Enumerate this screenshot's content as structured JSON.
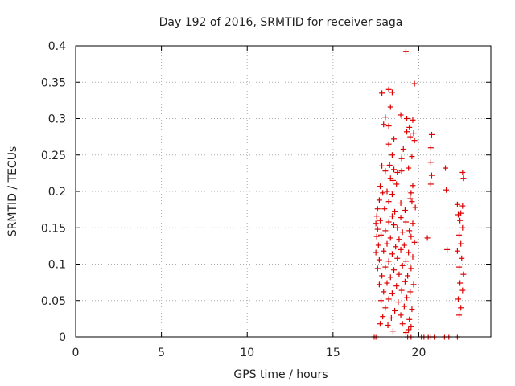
{
  "chart_data": {
    "type": "scatter",
    "title": "Day 192 of 2016, SRMTID for receiver saga",
    "xlabel": "GPS time / hours",
    "ylabel": "SRMTID / TECUs",
    "xlim": [
      0,
      24.2
    ],
    "ylim": [
      0,
      0.4
    ],
    "x_ticks": [
      0,
      5,
      10,
      15,
      20
    ],
    "x_tick_labels": [
      "0",
      "5",
      "10",
      "15",
      "20"
    ],
    "y_ticks": [
      0,
      0.05,
      0.1,
      0.15,
      0.2,
      0.25,
      0.3,
      0.35,
      0.4
    ],
    "y_tick_labels": [
      "0",
      "0.05",
      "0.1",
      "0.15",
      "0.2",
      "0.25",
      "0.3",
      "0.35",
      "0.4"
    ],
    "grid": true,
    "marker": "+",
    "series": [
      {
        "name": "SRMTID",
        "color": "#dd0000",
        "points": [
          [
            19.25,
            0.392
          ],
          [
            19.75,
            0.348
          ],
          [
            17.85,
            0.335
          ],
          [
            18.25,
            0.34
          ],
          [
            18.45,
            0.336
          ],
          [
            18.35,
            0.316
          ],
          [
            18.95,
            0.305
          ],
          [
            19.3,
            0.3
          ],
          [
            19.65,
            0.298
          ],
          [
            18.05,
            0.302
          ],
          [
            19.45,
            0.288
          ],
          [
            19.7,
            0.28
          ],
          [
            17.95,
            0.292
          ],
          [
            18.25,
            0.29
          ],
          [
            19.3,
            0.282
          ],
          [
            19.5,
            0.275
          ],
          [
            19.75,
            0.27
          ],
          [
            20.75,
            0.278
          ],
          [
            18.25,
            0.265
          ],
          [
            18.55,
            0.272
          ],
          [
            19.1,
            0.258
          ],
          [
            20.7,
            0.26
          ],
          [
            19.0,
            0.245
          ],
          [
            19.6,
            0.248
          ],
          [
            18.45,
            0.25
          ],
          [
            18.3,
            0.236
          ],
          [
            18.55,
            0.23
          ],
          [
            18.75,
            0.226
          ],
          [
            19.0,
            0.228
          ],
          [
            19.4,
            0.232
          ],
          [
            20.7,
            0.24
          ],
          [
            21.55,
            0.232
          ],
          [
            17.85,
            0.235
          ],
          [
            18.05,
            0.228
          ],
          [
            18.35,
            0.218
          ],
          [
            18.5,
            0.215
          ],
          [
            22.55,
            0.226
          ],
          [
            22.6,
            0.218
          ],
          [
            20.75,
            0.222
          ],
          [
            20.7,
            0.21
          ],
          [
            17.75,
            0.207
          ],
          [
            18.7,
            0.21
          ],
          [
            19.65,
            0.208
          ],
          [
            17.9,
            0.198
          ],
          [
            18.15,
            0.2
          ],
          [
            18.45,
            0.196
          ],
          [
            19.55,
            0.198
          ],
          [
            21.6,
            0.202
          ],
          [
            17.7,
            0.188
          ],
          [
            18.25,
            0.186
          ],
          [
            18.95,
            0.184
          ],
          [
            19.5,
            0.19
          ],
          [
            19.6,
            0.186
          ],
          [
            22.25,
            0.182
          ],
          [
            22.55,
            0.18
          ],
          [
            17.6,
            0.176
          ],
          [
            18.0,
            0.176
          ],
          [
            18.6,
            0.172
          ],
          [
            19.2,
            0.174
          ],
          [
            19.8,
            0.178
          ],
          [
            17.55,
            0.166
          ],
          [
            18.45,
            0.166
          ],
          [
            18.95,
            0.164
          ],
          [
            22.3,
            0.168
          ],
          [
            22.45,
            0.17
          ],
          [
            17.5,
            0.156
          ],
          [
            17.75,
            0.16
          ],
          [
            18.25,
            0.158
          ],
          [
            18.55,
            0.154
          ],
          [
            19.25,
            0.158
          ],
          [
            19.65,
            0.156
          ],
          [
            22.4,
            0.16
          ],
          [
            17.6,
            0.148
          ],
          [
            18.05,
            0.146
          ],
          [
            18.75,
            0.15
          ],
          [
            19.05,
            0.144
          ],
          [
            19.45,
            0.146
          ],
          [
            22.55,
            0.15
          ],
          [
            17.55,
            0.138
          ],
          [
            17.8,
            0.14
          ],
          [
            18.35,
            0.136
          ],
          [
            18.85,
            0.134
          ],
          [
            19.55,
            0.138
          ],
          [
            20.5,
            0.136
          ],
          [
            22.35,
            0.14
          ],
          [
            17.65,
            0.126
          ],
          [
            18.15,
            0.128
          ],
          [
            18.65,
            0.124
          ],
          [
            19.15,
            0.126
          ],
          [
            19.75,
            0.13
          ],
          [
            22.45,
            0.128
          ],
          [
            17.5,
            0.116
          ],
          [
            17.95,
            0.118
          ],
          [
            18.45,
            0.114
          ],
          [
            18.95,
            0.12
          ],
          [
            19.4,
            0.116
          ],
          [
            21.65,
            0.12
          ],
          [
            22.25,
            0.118
          ],
          [
            17.7,
            0.106
          ],
          [
            18.25,
            0.104
          ],
          [
            18.75,
            0.108
          ],
          [
            19.25,
            0.104
          ],
          [
            19.65,
            0.11
          ],
          [
            22.5,
            0.108
          ],
          [
            17.6,
            0.094
          ],
          [
            18.05,
            0.096
          ],
          [
            18.55,
            0.092
          ],
          [
            19.05,
            0.098
          ],
          [
            19.55,
            0.094
          ],
          [
            22.35,
            0.096
          ],
          [
            17.85,
            0.084
          ],
          [
            18.35,
            0.082
          ],
          [
            18.85,
            0.086
          ],
          [
            19.35,
            0.084
          ],
          [
            22.6,
            0.086
          ],
          [
            17.7,
            0.072
          ],
          [
            18.15,
            0.074
          ],
          [
            18.7,
            0.07
          ],
          [
            19.2,
            0.076
          ],
          [
            19.7,
            0.072
          ],
          [
            22.4,
            0.074
          ],
          [
            17.95,
            0.062
          ],
          [
            18.45,
            0.06
          ],
          [
            19.0,
            0.064
          ],
          [
            19.5,
            0.062
          ],
          [
            22.55,
            0.064
          ],
          [
            17.8,
            0.05
          ],
          [
            18.25,
            0.052
          ],
          [
            18.8,
            0.048
          ],
          [
            19.3,
            0.054
          ],
          [
            22.3,
            0.052
          ],
          [
            18.05,
            0.04
          ],
          [
            18.6,
            0.036
          ],
          [
            19.15,
            0.042
          ],
          [
            19.6,
            0.038
          ],
          [
            22.45,
            0.04
          ],
          [
            17.9,
            0.028
          ],
          [
            18.4,
            0.026
          ],
          [
            18.95,
            0.03
          ],
          [
            19.45,
            0.024
          ],
          [
            22.35,
            0.03
          ],
          [
            17.75,
            0.018
          ],
          [
            18.2,
            0.016
          ],
          [
            19.05,
            0.018
          ],
          [
            19.55,
            0.014
          ],
          [
            18.5,
            0.008
          ],
          [
            19.25,
            0.006
          ],
          [
            19.4,
            0.01
          ],
          [
            17.4,
            0.0
          ],
          [
            17.5,
            0.0
          ],
          [
            19.35,
            0.0
          ],
          [
            19.55,
            0.0
          ],
          [
            20.15,
            0.0
          ],
          [
            20.3,
            0.0
          ],
          [
            20.55,
            0.0
          ],
          [
            20.7,
            0.0
          ],
          [
            20.9,
            0.0
          ],
          [
            21.5,
            0.0
          ],
          [
            21.75,
            0.0
          ],
          [
            22.25,
            0.0
          ]
        ]
      }
    ]
  }
}
